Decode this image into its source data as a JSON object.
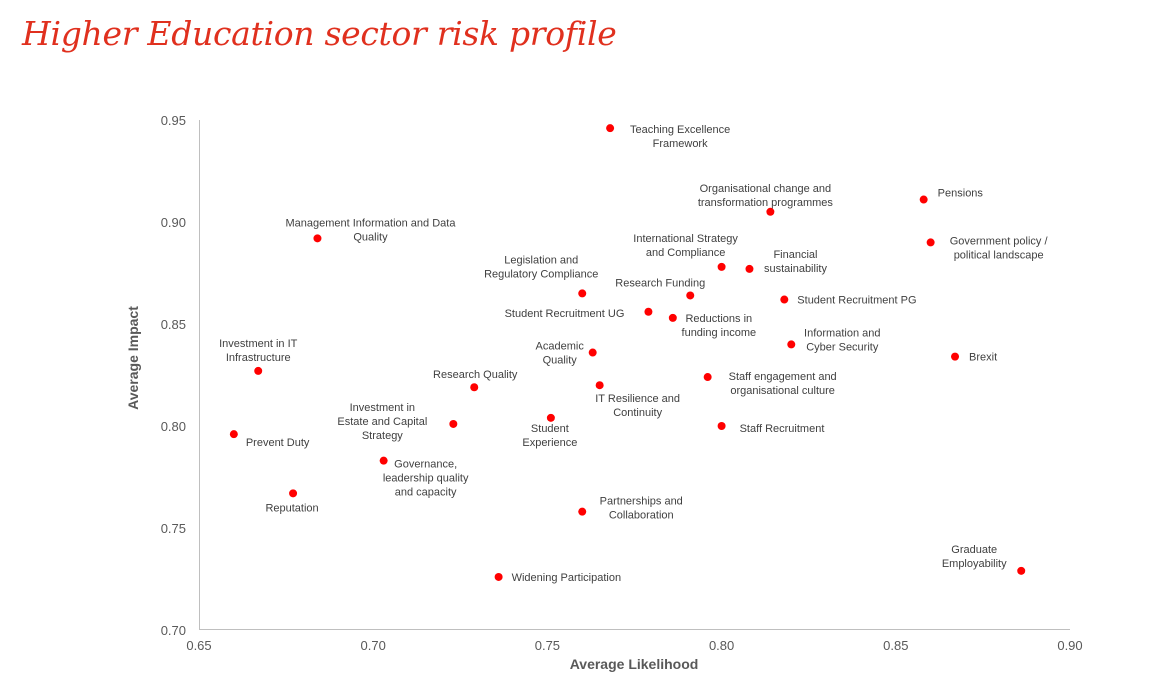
{
  "title": "Higher Education sector risk profile",
  "chart_data": {
    "type": "scatter",
    "title": "Higher Education sector risk profile",
    "xlabel": "Average Likelihood",
    "ylabel": "Average Impact",
    "xlim": [
      0.65,
      0.9
    ],
    "ylim": [
      0.7,
      0.95
    ],
    "xticks": [
      "0.65",
      "0.70",
      "0.75",
      "0.80",
      "0.85",
      "0.90"
    ],
    "yticks": [
      "0.70",
      "0.75",
      "0.80",
      "0.85",
      "0.90",
      "0.95"
    ],
    "grid": false,
    "legend": "none",
    "marker_color": "#ff0000",
    "points": [
      {
        "label": [
          "Teaching Excellence",
          "Framework"
        ],
        "x": 0.768,
        "y": 0.946
      },
      {
        "label": [
          "Organisational change and",
          "transformation programmes"
        ],
        "x": 0.814,
        "y": 0.905
      },
      {
        "label": [
          "Pensions"
        ],
        "x": 0.858,
        "y": 0.911
      },
      {
        "label": [
          "Government policy /",
          "political landscape"
        ],
        "x": 0.86,
        "y": 0.89
      },
      {
        "label": [
          "Management Information and Data",
          "Quality"
        ],
        "x": 0.684,
        "y": 0.892
      },
      {
        "label": [
          "International Strategy",
          "and Compliance"
        ],
        "x": 0.8,
        "y": 0.878
      },
      {
        "label": [
          "Financial",
          "sustainability"
        ],
        "x": 0.808,
        "y": 0.877
      },
      {
        "label": [
          "Legislation and",
          "Regulatory Compliance"
        ],
        "x": 0.76,
        "y": 0.865
      },
      {
        "label": [
          "Research Funding"
        ],
        "x": 0.791,
        "y": 0.864
      },
      {
        "label": [
          "Student Recruitment PG"
        ],
        "x": 0.818,
        "y": 0.862
      },
      {
        "label": [
          "Student Recruitment UG"
        ],
        "x": 0.779,
        "y": 0.856
      },
      {
        "label": [
          "Reductions in",
          "funding income"
        ],
        "x": 0.786,
        "y": 0.853
      },
      {
        "label": [
          "Information and",
          "Cyber Security"
        ],
        "x": 0.82,
        "y": 0.84
      },
      {
        "label": [
          "Academic",
          "Quality"
        ],
        "x": 0.763,
        "y": 0.836
      },
      {
        "label": [
          "Brexit"
        ],
        "x": 0.867,
        "y": 0.834
      },
      {
        "label": [
          "Investment in IT",
          "Infrastructure"
        ],
        "x": 0.667,
        "y": 0.827
      },
      {
        "label": [
          "Staff engagement and",
          "organisational culture"
        ],
        "x": 0.796,
        "y": 0.824
      },
      {
        "label": [
          "Research Quality"
        ],
        "x": 0.729,
        "y": 0.819
      },
      {
        "label": [
          "IT Resilience and",
          "Continuity"
        ],
        "x": 0.765,
        "y": 0.82
      },
      {
        "label": [
          "Student",
          "Experience"
        ],
        "x": 0.751,
        "y": 0.804
      },
      {
        "label": [
          "Investment in",
          "Estate and Capital",
          "Strategy"
        ],
        "x": 0.723,
        "y": 0.801
      },
      {
        "label": [
          "Staff Recruitment"
        ],
        "x": 0.8,
        "y": 0.8
      },
      {
        "label": [
          "Prevent Duty"
        ],
        "x": 0.66,
        "y": 0.796
      },
      {
        "label": [
          "Governance,",
          "leadership quality",
          "and capacity"
        ],
        "x": 0.703,
        "y": 0.783
      },
      {
        "label": [
          "Reputation"
        ],
        "x": 0.677,
        "y": 0.767
      },
      {
        "label": [
          "Partnerships and",
          "Collaboration"
        ],
        "x": 0.76,
        "y": 0.758
      },
      {
        "label": [
          "Graduate",
          "Employability"
        ],
        "x": 0.886,
        "y": 0.729
      },
      {
        "label": [
          "Widening Participation"
        ],
        "x": 0.736,
        "y": 0.726
      }
    ]
  }
}
